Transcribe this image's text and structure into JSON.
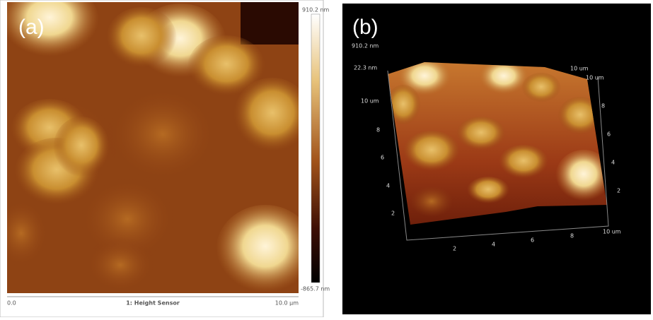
{
  "panels": [
    {
      "label": "(a)",
      "colorbar": {
        "max": "910.2 nm",
        "min": "-865.7 nm"
      },
      "axis": {
        "start": "0.0",
        "title": "1: Height Sensor",
        "end": "10.0 µm"
      }
    },
    {
      "label": "(b)",
      "z_max": "910.2 nm",
      "z_top": "22.3 nm",
      "left_axis": [
        "10 um",
        "8",
        "6",
        "4",
        "2"
      ],
      "bottom_axis": [
        "2",
        "4",
        "6",
        "8",
        "10 um"
      ],
      "right_axis": [
        "8",
        "6",
        "4",
        "2"
      ],
      "top_labels": [
        "10 um",
        "10 um"
      ]
    }
  ]
}
